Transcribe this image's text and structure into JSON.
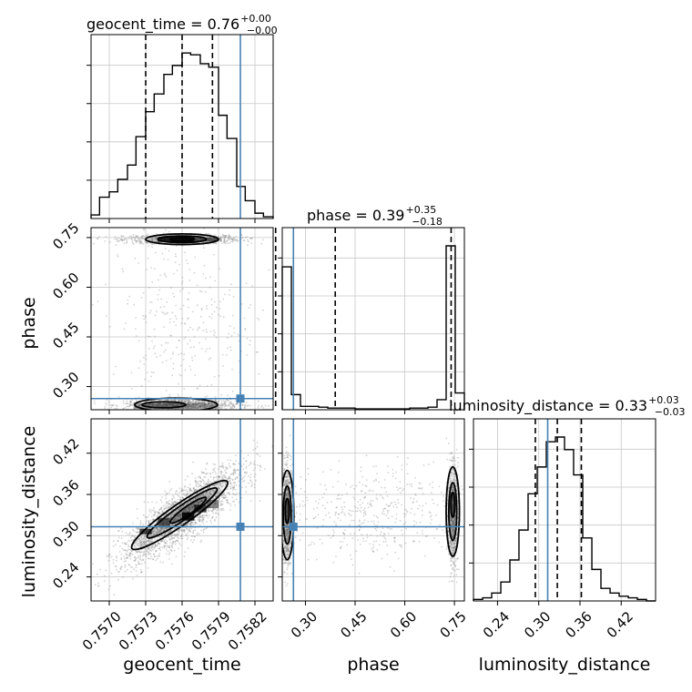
{
  "chart_data": {
    "type": "corner",
    "parameters": [
      "geocent_time",
      "phase",
      "luminosity_distance"
    ],
    "titles": {
      "geocent_time": {
        "name": "geocent_time",
        "median": "0.76",
        "plus": "+0.00",
        "minus": "−0.00"
      },
      "phase": {
        "name": "phase",
        "median": "0.39",
        "plus": "+0.35",
        "minus": "−0.18"
      },
      "luminosity_distance": {
        "name": "luminosity_distance",
        "median": "0.33",
        "plus": "+0.03",
        "minus": "−0.03"
      }
    },
    "axis_labels": {
      "x": [
        "geocent_time",
        "phase",
        "luminosity_distance"
      ],
      "y": [
        "phase",
        "luminosity_distance"
      ]
    },
    "ranges": {
      "geocent_time": [
        0.75685,
        0.75835
      ],
      "phase": [
        0.23,
        0.78
      ],
      "luminosity_distance": [
        0.205,
        0.47
      ]
    },
    "ticks": {
      "geocent_time": {
        "values": [
          0.757,
          0.7573,
          0.7576,
          0.7579,
          0.7582
        ],
        "labels": [
          "0.7570",
          "0.7573",
          "0.7576",
          "0.7579",
          "0.7582"
        ]
      },
      "phase": {
        "values": [
          0.3,
          0.45,
          0.6,
          0.75
        ],
        "labels": [
          "0.30",
          "0.45",
          "0.60",
          "0.75"
        ]
      },
      "luminosity_distance": {
        "values": [
          0.24,
          0.3,
          0.36,
          0.42
        ],
        "labels": [
          "0.24",
          "0.30",
          "0.36",
          "0.42"
        ]
      }
    },
    "truth": {
      "geocent_time": 0.75808,
      "phase": 0.2637,
      "luminosity_distance": 0.313
    },
    "quantiles": {
      "geocent_time": [
        0.7573,
        0.7576,
        0.75785
      ],
      "phase": [
        0.21,
        0.39,
        0.74
      ],
      "luminosity_distance": [
        0.295,
        0.327,
        0.362
      ]
    },
    "histograms": {
      "geocent_time": {
        "edges": [
          0.75685,
          0.75692,
          0.757,
          0.75707,
          0.75715,
          0.75722,
          0.7573,
          0.75737,
          0.75745,
          0.75752,
          0.7576,
          0.75767,
          0.75775,
          0.75782,
          0.7579,
          0.75797,
          0.75805,
          0.75812,
          0.7582,
          0.75827,
          0.75835
        ],
        "counts": [
          2,
          12,
          15,
          22,
          30,
          46,
          60,
          70,
          81,
          86,
          93,
          92,
          87,
          85,
          58,
          45,
          18,
          10,
          3,
          1
        ]
      },
      "phase": {
        "edges": [
          0.23,
          0.2575,
          0.285,
          0.3125,
          0.34,
          0.3675,
          0.395,
          0.4225,
          0.45,
          0.4775,
          0.505,
          0.5325,
          0.56,
          0.5875,
          0.615,
          0.6425,
          0.67,
          0.6975,
          0.725,
          0.7525,
          0.78
        ],
        "counts": [
          170,
          18,
          4,
          4,
          3,
          2,
          2,
          2,
          1,
          1,
          1,
          1,
          1,
          1,
          2,
          2,
          3,
          12,
          195,
          20
        ]
      },
      "luminosity_distance": {
        "edges": [
          0.205,
          0.2183,
          0.2315,
          0.2448,
          0.258,
          0.2712,
          0.2845,
          0.2978,
          0.311,
          0.3243,
          0.3375,
          0.3507,
          0.364,
          0.3773,
          0.3905,
          0.4038,
          0.417,
          0.4303,
          0.4435,
          0.4568,
          0.47
        ],
        "counts": [
          1,
          2,
          5,
          12,
          26,
          45,
          68,
          85,
          101,
          104,
          96,
          80,
          40,
          20,
          8,
          5,
          3,
          2,
          1,
          0
        ]
      }
    },
    "grid": true
  }
}
